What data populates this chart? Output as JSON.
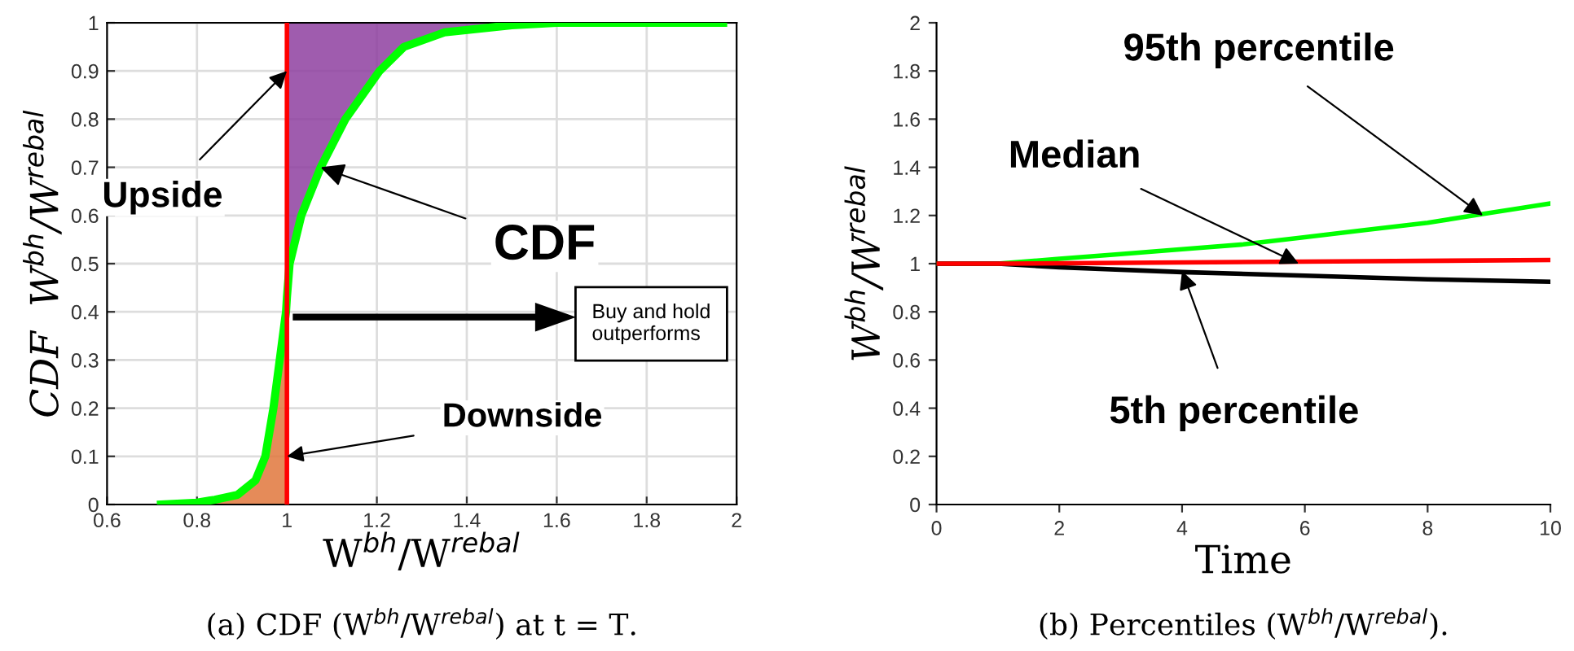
{
  "chart_data": [
    {
      "type": "line",
      "xlabel": "W$^{bh}$/W$^{rebal}$",
      "ylabel": "CDF  W$^{bh}$/W$^{rebal}$",
      "xlim": [
        0.6,
        2
      ],
      "ylim": [
        0,
        1
      ],
      "xticks": [
        0.6,
        0.8,
        1,
        1.2,
        1.4,
        1.6,
        1.8,
        2
      ],
      "yticks": [
        0,
        0.1,
        0.2,
        0.3,
        0.4,
        0.5,
        0.6,
        0.7,
        0.8,
        0.9,
        1
      ],
      "grid": true,
      "series": [
        {
          "type": "area",
          "color": "#e0773c",
          "x": [
            0.84,
            0.89,
            0.93,
            0.952,
            0.97,
            0.984,
            0.998,
            1.0
          ],
          "values": [
            0.01,
            0.02,
            0.05,
            0.1,
            0.2,
            0.3,
            0.4,
            0.43
          ]
        },
        {
          "color": "#00ff00",
          "x": [
            0.72,
            0.8,
            0.84,
            0.89,
            0.93,
            0.952,
            0.97,
            0.984,
            0.998,
            1.0,
            1.006,
            1.032,
            1.075,
            1.13,
            1.206,
            1.26,
            1.35,
            1.5,
            1.6,
            1.97
          ],
          "values": [
            0,
            0.004,
            0.01,
            0.02,
            0.05,
            0.1,
            0.2,
            0.3,
            0.4,
            0.43,
            0.5,
            0.6,
            0.7,
            0.8,
            0.9,
            0.95,
            0.98,
            0.995,
            1,
            1
          ],
          "lower": [
            null,
            null,
            null,
            null,
            null,
            null,
            null,
            null,
            null,
            0.43,
            0.5,
            0.6,
            0.7,
            0.8,
            0.9,
            0.95,
            0.98,
            0.995,
            null,
            null
          ],
          "upper": [
            null,
            null,
            null,
            null,
            null,
            null,
            null,
            null,
            null,
            1,
            1,
            1,
            1,
            1,
            1,
            1,
            1,
            1,
            null,
            null
          ]
        }
      ],
      "ref_lines": [
        {
          "axis": "x",
          "value": 1,
          "color": "#ff0000"
        }
      ],
      "annotations": [
        {
          "text": "Upside",
          "x": 1.0,
          "y": 0.9
        },
        {
          "text": "CDF",
          "x": 1.075,
          "y": 0.7
        },
        {
          "text": "Downside",
          "x": 1.0,
          "y": 0.1
        },
        "Buy and hold\noutperforms",
        "(a) CDF (W$^{bh}$/W$^{rebal}$) at t = T."
      ]
    },
    {
      "type": "line",
      "xlabel": "Time",
      "ylabel": "W$^{bh}$/W$^{rebal}$",
      "xlim": [
        0,
        10
      ],
      "ylim": [
        0,
        2
      ],
      "xticks": [
        0,
        2,
        4,
        6,
        8,
        10
      ],
      "yticks": [
        0,
        0.2,
        0.4,
        0.6,
        0.8,
        1,
        1.2,
        1.4,
        1.6,
        1.8,
        2
      ],
      "grid": false,
      "series": [
        {
          "color": "#00ff00",
          "x": [
            0,
            1,
            2,
            3,
            4,
            5,
            6,
            7,
            8,
            9,
            10
          ],
          "values": [
            1,
            1,
            1.02,
            1.04,
            1.06,
            1.08,
            1.11,
            1.14,
            1.17,
            1.21,
            1.25
          ]
        },
        {
          "color": "#000000",
          "x": [
            0,
            1,
            2,
            4,
            6,
            8,
            10
          ],
          "values": [
            1,
            1,
            0.985,
            0.965,
            0.95,
            0.935,
            0.925
          ]
        },
        {
          "color": "#ff0000",
          "x": [
            0,
            1,
            4,
            7,
            10
          ],
          "values": [
            1,
            1,
            1.005,
            1.01,
            1.015
          ]
        }
      ],
      "annotations": [
        {
          "text": "95th percentile",
          "x": 8.9,
          "y": 1.2
        },
        {
          "text": "Median",
          "x": 5.9,
          "y": 1.0
        },
        {
          "text": "5th percentile",
          "x": 4,
          "y": 0.97
        },
        "(b) Percentiles (W$^{bh}$/W$^{rebal}$)."
      ]
    }
  ]
}
